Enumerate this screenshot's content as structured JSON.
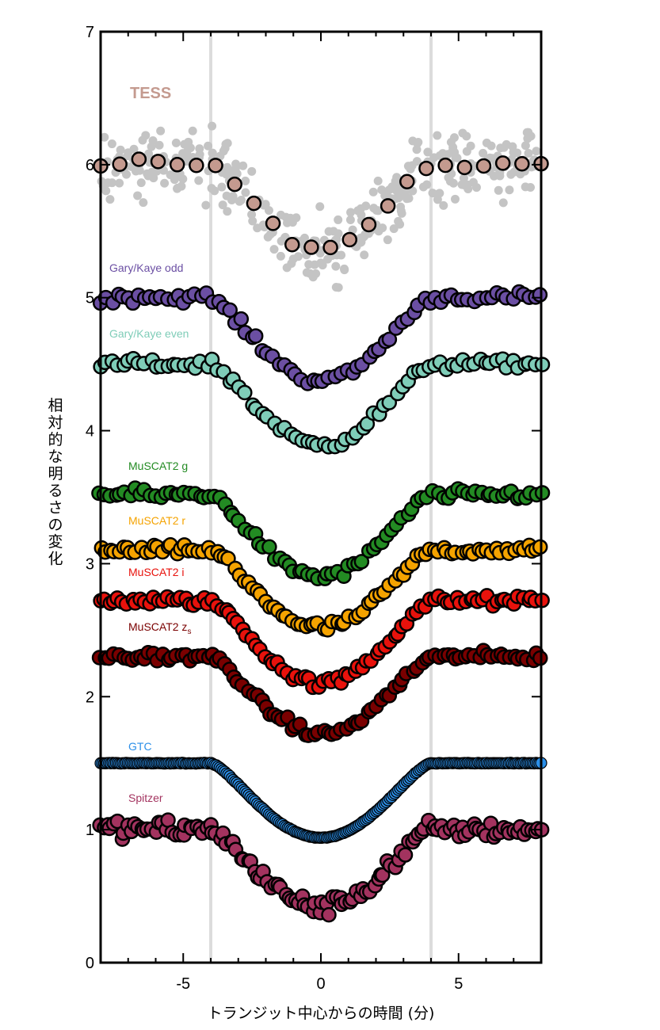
{
  "chart_data": {
    "type": "scatter",
    "xlabel": "トランジット中心からの時間 (分)",
    "ylabel": "相対的な明るさの変化",
    "xlim": [
      -8,
      8
    ],
    "ylim": [
      0,
      7
    ],
    "x_ticks": [
      -5,
      0,
      5
    ],
    "y_ticks": [
      0,
      1,
      2,
      3,
      4,
      5,
      6,
      7
    ],
    "reference_lines_x": [
      -4,
      4
    ],
    "grid": false,
    "series": [
      {
        "name": "TESS",
        "color": "#c49a8f",
        "baseline": 6.0,
        "depth": 0.62,
        "point_count": 24
      },
      {
        "name": "Gary/Kaye odd",
        "color": "#6b4fa3",
        "baseline": 5.0,
        "depth": 0.62,
        "point_count": 80
      },
      {
        "name": "Gary/Kaye even",
        "color": "#7fcdb8",
        "baseline": 4.5,
        "depth": 0.6,
        "point_count": 80
      },
      {
        "name": "MuSCAT2 g",
        "color": "#238b23",
        "baseline": 3.52,
        "depth": 0.62,
        "point_count": 90
      },
      {
        "name": "MuSCAT2 r",
        "color": "#f5a300",
        "baseline": 3.1,
        "depth": 0.58,
        "point_count": 100
      },
      {
        "name": "MuSCAT2 i",
        "color": "#e8120c",
        "baseline": 2.72,
        "depth": 0.62,
        "point_count": 100
      },
      {
        "name": "MuSCAT2 z",
        "name_subscript": "s",
        "color": "#7a0000",
        "baseline": 2.3,
        "depth": 0.58,
        "point_count": 100
      },
      {
        "name": "GTC",
        "color": "#2b8fe8",
        "baseline": 1.5,
        "depth": 0.56,
        "point_count": 260
      },
      {
        "name": "Spitzer",
        "color": "#a3335f",
        "baseline": 1.0,
        "depth": 0.58,
        "point_count": 130
      }
    ],
    "tess_raw": {
      "color": "#c4c4c4",
      "point_count": 360
    }
  }
}
